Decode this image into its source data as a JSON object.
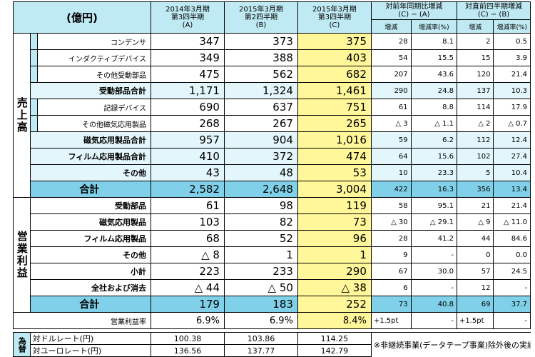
{
  "header": {
    "unit_label": "(億円)",
    "periods": [
      {
        "label": "2014年3月期\n第3四半期\n(A)"
      },
      {
        "label": "2015年3月期\n第2四半期\n(B)"
      },
      {
        "label": "2015年3月期\n第3四半期\n(C)"
      }
    ],
    "compare_groups": [
      {
        "label": "対前年同期比増減\n(C) − (A)"
      },
      {
        "label": "対直前四半期増減\n(C) − (B)"
      }
    ],
    "sub_labels": [
      "増減",
      "増減率(%)",
      "増減",
      "増減率(%)"
    ]
  },
  "sections": {
    "sales_label": "売上高",
    "op_label": "営業利益"
  },
  "sales_rows": [
    {
      "name": "コンデンサ",
      "a": "347",
      "b": "373",
      "c": "375",
      "d1": "28",
      "r1": "8.1",
      "d2": "2",
      "r2": "0.5"
    },
    {
      "name": "インダクティブデバイス",
      "a": "349",
      "b": "388",
      "c": "403",
      "d1": "54",
      "r1": "15.5",
      "d2": "15",
      "r2": "3.9"
    },
    {
      "name": "その他受動部品",
      "a": "475",
      "b": "562",
      "c": "682",
      "d1": "207",
      "r1": "43.6",
      "d2": "120",
      "r2": "21.4"
    },
    {
      "name": "受動部品合計",
      "a": "1,171",
      "b": "1,324",
      "c": "1,461",
      "d1": "290",
      "r1": "24.8",
      "d2": "137",
      "r2": "10.3"
    },
    {
      "name": "記録デバイス",
      "a": "690",
      "b": "637",
      "c": "751",
      "d1": "61",
      "r1": "8.8",
      "d2": "114",
      "r2": "17.9"
    },
    {
      "name": "その他磁気応用製品",
      "a": "268",
      "b": "267",
      "c": "265",
      "d1": "△ 3",
      "r1": "△ 1.1",
      "d2": "△ 2",
      "r2": "△ 0.7"
    },
    {
      "name": "磁気応用製品合計",
      "a": "957",
      "b": "904",
      "c": "1,016",
      "d1": "59",
      "r1": "6.2",
      "d2": "112",
      "r2": "12.4"
    },
    {
      "name": "フィルム応用製品合計",
      "a": "410",
      "b": "372",
      "c": "474",
      "d1": "64",
      "r1": "15.6",
      "d2": "102",
      "r2": "27.4"
    },
    {
      "name": "その他",
      "a": "43",
      "b": "48",
      "c": "53",
      "d1": "10",
      "r1": "23.3",
      "d2": "5",
      "r2": "10.4"
    },
    {
      "name": "合計",
      "a": "2,582",
      "b": "2,648",
      "c": "3,004",
      "d1": "422",
      "r1": "16.3",
      "d2": "356",
      "r2": "13.4"
    }
  ],
  "op_rows": [
    {
      "name": "受動部品",
      "a": "61",
      "b": "98",
      "c": "119",
      "d1": "58",
      "r1": "95.1",
      "d2": "21",
      "r2": "21.4"
    },
    {
      "name": "磁気応用製品",
      "a": "103",
      "b": "82",
      "c": "73",
      "d1": "△ 30",
      "r1": "△ 29.1",
      "d2": "△ 9",
      "r2": "△ 11.0"
    },
    {
      "name": "フィルム応用製品",
      "a": "68",
      "b": "52",
      "c": "96",
      "d1": "28",
      "r1": "41.2",
      "d2": "44",
      "r2": "84.6"
    },
    {
      "name": "その他",
      "a": "△ 8",
      "b": "1",
      "c": "1",
      "d1": "9",
      "r1": "-",
      "d2": "0",
      "r2": "0.0"
    },
    {
      "name": "小計",
      "a": "223",
      "b": "233",
      "c": "290",
      "d1": "67",
      "r1": "30.0",
      "d2": "57",
      "r2": "24.5"
    },
    {
      "name": "全社および消去",
      "a": "△ 44",
      "b": "△ 50",
      "c": "△ 38",
      "d1": "6",
      "r1": "-",
      "d2": "12",
      "r2": "-"
    },
    {
      "name": "合計",
      "a": "179",
      "b": "183",
      "c": "252",
      "d1": "73",
      "r1": "40.8",
      "d2": "69",
      "r2": "37.7"
    }
  ],
  "margin_row": {
    "name": "営業利益率",
    "a": "6.9%",
    "b": "6.9%",
    "c": "8.4%",
    "d1": "+1.5pt",
    "r1": "-",
    "d2": "+1.5pt",
    "r2": "-"
  },
  "fx": {
    "label": "為替",
    "rows": [
      {
        "name": "対ドルレート(円)",
        "a": "100.38",
        "b": "103.86",
        "c": "114.25"
      },
      {
        "name": "対ユーロレート(円)",
        "a": "136.56",
        "b": "137.77",
        "c": "142.79"
      }
    ],
    "note": "※非継続事業(データテープ事業)除外後の実績値"
  }
}
